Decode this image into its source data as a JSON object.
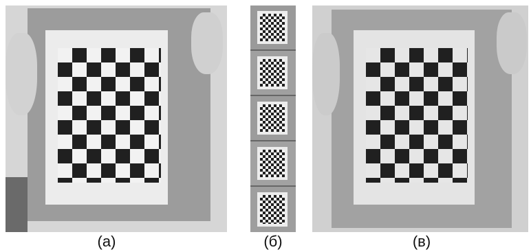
{
  "panels": [
    {
      "caption": "(а)"
    },
    {
      "caption": "(б)"
    },
    {
      "caption": "(в)"
    }
  ],
  "colors": {
    "background": "#ffffff",
    "board_dark": "#202020",
    "board_light": "#f2f2f2",
    "cardboard": "#9e9e9e",
    "wall": "#d8d8d8"
  }
}
